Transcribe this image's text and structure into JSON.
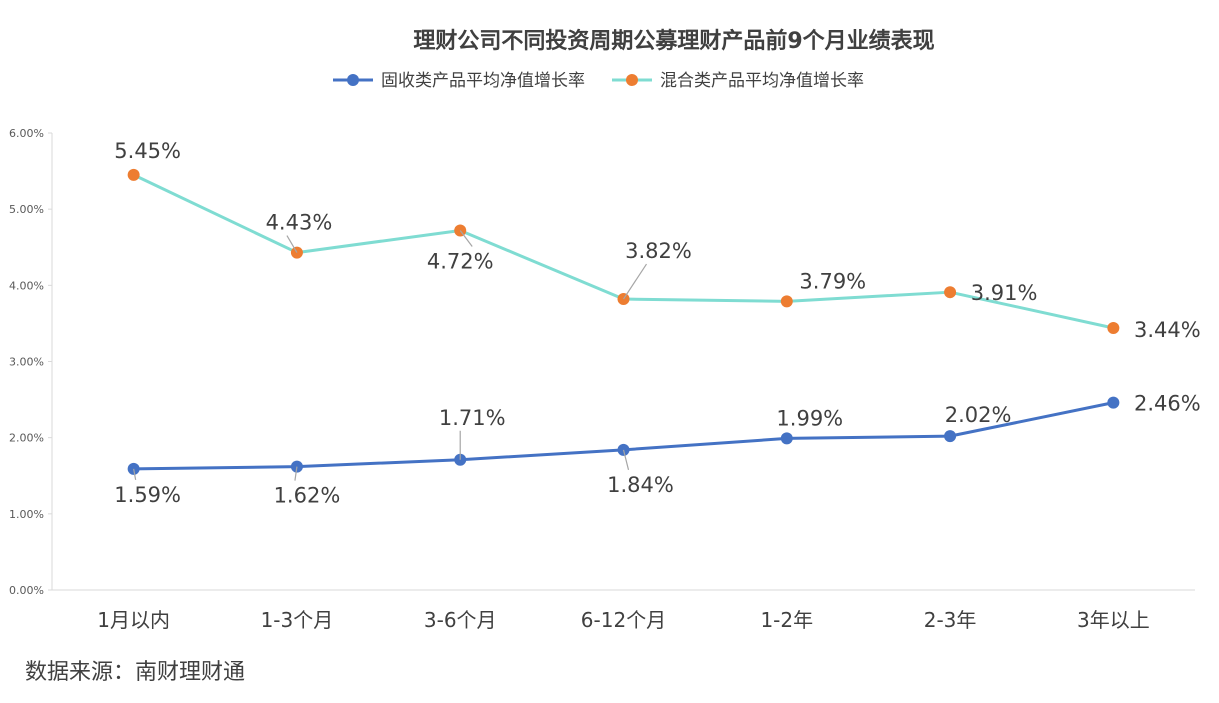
{
  "chart_data": {
    "type": "line",
    "title": "理财公司不同投资周期公募理财产品前9个月业绩表现",
    "categories": [
      "1月以内",
      "1-3个月",
      "3-6个月",
      "6-12个月",
      "1-2年",
      "2-3年",
      "3年以上"
    ],
    "series": [
      {
        "name": "固收类产品平均净值增长率",
        "values": [
          1.59,
          1.62,
          1.71,
          1.84,
          1.99,
          2.02,
          2.46
        ],
        "labels": [
          "1.59%",
          "1.62%",
          "1.71%",
          "1.84%",
          "1.99%",
          "2.02%",
          "2.46%"
        ],
        "line_color": "#4472C4",
        "marker_color": "#4472C4"
      },
      {
        "name": "混合类产品平均净值增长率",
        "values": [
          5.45,
          4.43,
          4.72,
          3.82,
          3.79,
          3.91,
          3.44
        ],
        "labels": [
          "5.45%",
          "4.43%",
          "4.72%",
          "3.82%",
          "3.79%",
          "3.91%",
          "3.44%"
        ],
        "line_color": "#7FDCD2",
        "marker_color": "#ED7D31"
      }
    ],
    "y_ticks": [
      "0.00%",
      "1.00%",
      "2.00%",
      "3.00%",
      "4.00%",
      "5.00%",
      "6.00%"
    ],
    "ylim": [
      0,
      6
    ],
    "grid": false,
    "legend_position": "top-center",
    "source": "数据来源：南财理财通"
  }
}
